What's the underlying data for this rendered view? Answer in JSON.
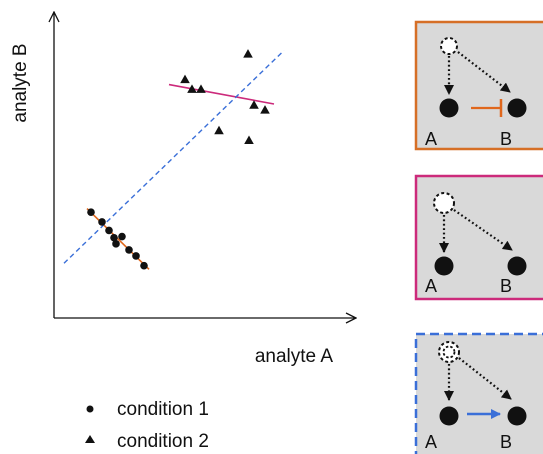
{
  "colors": {
    "axis": "#111111",
    "condition1_fit": "#e0671c",
    "condition2_fit": "#cc2a7b",
    "overall_fit": "#3a6fd8",
    "panel_bg": "#d9d9d9",
    "panel1_border": "#d66f26",
    "panel2_border": "#cc2a7b",
    "panel3_border": "#3a6fd8",
    "arrow_blue": "#3a6fd8",
    "inhibit_orange": "#e0671c"
  },
  "chart_data": {
    "type": "scatter",
    "title": "",
    "xlabel": "analyte A",
    "ylabel": "analyte B",
    "grid": false,
    "ticks": false,
    "xlim": [
      0,
      300
    ],
    "ylim": [
      0,
      250
    ],
    "legend": {
      "placement": "bottom-left"
    },
    "series": [
      {
        "name": "condition 1",
        "marker": "circle",
        "points": [
          [
            37,
            87
          ],
          [
            48,
            79
          ],
          [
            55,
            72
          ],
          [
            68,
            67
          ],
          [
            62,
            61
          ],
          [
            75,
            56
          ],
          [
            82,
            51
          ],
          [
            90,
            43
          ],
          [
            60,
            66
          ]
        ]
      },
      {
        "name": "condition 2",
        "marker": "triangle",
        "points": [
          [
            131,
            196
          ],
          [
            138,
            188
          ],
          [
            147,
            188
          ],
          [
            194,
            217
          ],
          [
            200,
            175
          ],
          [
            211,
            171
          ],
          [
            165,
            154
          ],
          [
            195,
            146
          ]
        ]
      }
    ],
    "fit_lines": [
      {
        "series": "condition 1",
        "style": "solid",
        "from": [
          33,
          90
        ],
        "to": [
          95,
          40
        ]
      },
      {
        "series": "condition 2",
        "style": "solid",
        "from": [
          115,
          192
        ],
        "to": [
          220,
          176
        ]
      },
      {
        "series": "all",
        "style": "dashed",
        "from": [
          10,
          45
        ],
        "to": [
          230,
          220
        ]
      }
    ]
  },
  "diagrams": [
    {
      "border_style": "solid",
      "latent": "single-dashed",
      "edge": "inhibits",
      "node_a_label": "A",
      "node_b_label": "B"
    },
    {
      "border_style": "solid",
      "latent": "single-dashed",
      "edge": "none",
      "node_a_label": "A",
      "node_b_label": "B"
    },
    {
      "border_style": "dashed",
      "latent": "double-dashed",
      "edge": "activates",
      "node_a_label": "A",
      "node_b_label": "B"
    }
  ]
}
